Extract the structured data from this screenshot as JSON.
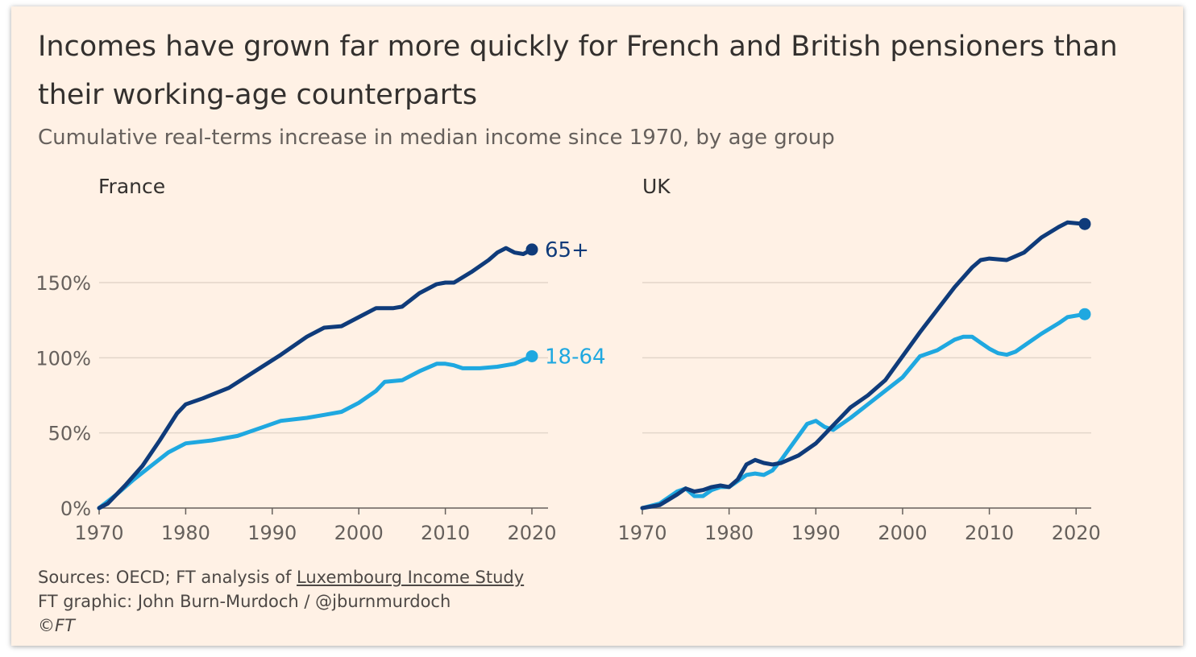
{
  "title": "Incomes have grown far more quickly for French and British pensioners than their working-age counterparts",
  "subtitle": "Cumulative real-terms increase in median income since 1970, by age group",
  "colors": {
    "background": "#fff1e5",
    "age_65_plus": "#0f3b7a",
    "age_18_64": "#1fa8e0",
    "grid": "#e3d6ca",
    "axis": "#66605c",
    "text": "#66605c"
  },
  "footer": {
    "sources_prefix": "Sources: OECD; FT analysis of ",
    "sources_link": "Luxembourg Income Study",
    "credit": "FT graphic: John Burn-Murdoch / @jburnmurdoch",
    "copyright": "©FT"
  },
  "chart_data": [
    {
      "type": "line",
      "title": "France",
      "xlabel": "",
      "ylabel": "",
      "xlim": [
        1970,
        2020
      ],
      "ylim": [
        0,
        190
      ],
      "xticks": [
        1970,
        1980,
        1990,
        2000,
        2010,
        2020
      ],
      "xtick_labels": [
        "1970",
        "1980",
        "1990",
        "2000",
        "2010",
        "2020"
      ],
      "yticks": [
        0,
        50,
        100,
        150
      ],
      "ytick_labels": [
        "0%",
        "50%",
        "100%",
        "150%"
      ],
      "series": [
        {
          "name": "65+",
          "label": "65+",
          "color": "#0f3b7a",
          "x": [
            1970,
            1971,
            1973,
            1975,
            1977,
            1979,
            1980,
            1982,
            1985,
            1988,
            1991,
            1994,
            1996,
            1998,
            2000,
            2002,
            2004,
            2005,
            2007,
            2009,
            2010,
            2011,
            2013,
            2015,
            2016,
            2017,
            2018,
            2019,
            2020
          ],
          "y": [
            0,
            3,
            15,
            28,
            45,
            63,
            69,
            73,
            80,
            91,
            102,
            114,
            120,
            121,
            127,
            133,
            133,
            134,
            143,
            149,
            150,
            150,
            157,
            165,
            170,
            173,
            170,
            169,
            172
          ]
        },
        {
          "name": "18-64",
          "label": "18-64",
          "color": "#1fa8e0",
          "x": [
            1970,
            1972,
            1974,
            1976,
            1978,
            1980,
            1983,
            1986,
            1989,
            1991,
            1994,
            1996,
            1998,
            2000,
            2002,
            2003,
            2005,
            2007,
            2009,
            2010,
            2011,
            2012,
            2014,
            2016,
            2018,
            2020
          ],
          "y": [
            0,
            9,
            19,
            28,
            37,
            43,
            45,
            48,
            54,
            58,
            60,
            62,
            64,
            70,
            78,
            84,
            85,
            91,
            96,
            96,
            95,
            93,
            93,
            94,
            96,
            101
          ]
        }
      ]
    },
    {
      "type": "line",
      "title": "UK",
      "xlabel": "",
      "ylabel": "",
      "xlim": [
        1970,
        2021
      ],
      "ylim": [
        0,
        190
      ],
      "xticks": [
        1970,
        1980,
        1990,
        2000,
        2010,
        2020
      ],
      "xtick_labels": [
        "1970",
        "1980",
        "1990",
        "2000",
        "2010",
        "2020"
      ],
      "series": [
        {
          "name": "65+",
          "color": "#0f3b7a",
          "x": [
            1970,
            1972,
            1974,
            1975,
            1976,
            1977,
            1978,
            1979,
            1980,
            1981,
            1982,
            1983,
            1984,
            1985,
            1986,
            1988,
            1990,
            1992,
            1994,
            1996,
            1998,
            2000,
            2002,
            2004,
            2006,
            2008,
            2009,
            2010,
            2012,
            2014,
            2016,
            2018,
            2019,
            2021
          ],
          "y": [
            0,
            2,
            9,
            13,
            11,
            12,
            14,
            15,
            14,
            19,
            29,
            32,
            30,
            29,
            30,
            35,
            43,
            55,
            67,
            75,
            85,
            101,
            117,
            132,
            147,
            160,
            165,
            166,
            165,
            170,
            180,
            187,
            190,
            189
          ]
        },
        {
          "name": "18-64",
          "color": "#1fa8e0",
          "x": [
            1970,
            1972,
            1974,
            1975,
            1976,
            1977,
            1978,
            1979,
            1980,
            1981,
            1982,
            1983,
            1984,
            1985,
            1986,
            1988,
            1989,
            1990,
            1991,
            1992,
            1993,
            1994,
            1996,
            1998,
            2000,
            2002,
            2004,
            2006,
            2007,
            2008,
            2009,
            2010,
            2011,
            2012,
            2013,
            2014,
            2016,
            2018,
            2019,
            2021
          ],
          "y": [
            0,
            3,
            11,
            13,
            8,
            8,
            12,
            14,
            14,
            18,
            22,
            23,
            22,
            25,
            32,
            48,
            56,
            58,
            54,
            52,
            56,
            60,
            69,
            78,
            87,
            101,
            105,
            112,
            114,
            114,
            110,
            106,
            103,
            102,
            104,
            108,
            116,
            123,
            127,
            129
          ]
        }
      ]
    }
  ]
}
